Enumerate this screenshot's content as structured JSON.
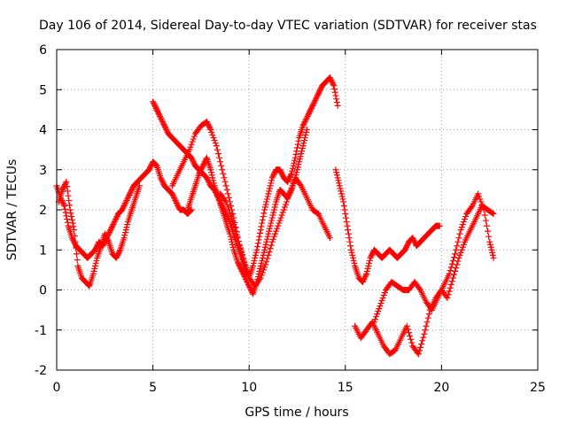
{
  "chart_data": {
    "type": "scatter",
    "title": "Day 106 of 2014, Sidereal Day-to-day VTEC variation (SDTVAR) for receiver stas",
    "xlabel": "GPS time / hours",
    "ylabel": "SDTVAR / TECUs",
    "xlim": [
      0,
      25
    ],
    "ylim": [
      -2,
      6
    ],
    "xticks": [
      0,
      5,
      10,
      15,
      20,
      25
    ],
    "yticks": [
      -2,
      -1,
      0,
      1,
      2,
      3,
      4,
      5,
      6
    ],
    "grid": true,
    "legend": "none",
    "marker": "plus",
    "series": [
      {
        "color": "#ff0000",
        "x": [
          0,
          0.2,
          0.4,
          0.6,
          0.8,
          1.0,
          1.2,
          1.4,
          1.6,
          1.8,
          2.0,
          2.2,
          2.4,
          2.6,
          2.8,
          3.0,
          3.2,
          3.4,
          3.6,
          3.8,
          4.0,
          4.2,
          4.4,
          4.6,
          4.8,
          5.0,
          5.2,
          5.4,
          5.6,
          5.8,
          6.0,
          6.2,
          6.4,
          6.6,
          6.8,
          7.0
        ],
        "y": [
          2.6,
          2.3,
          2.1,
          1.6,
          1.3,
          1.1,
          1.0,
          0.9,
          0.8,
          0.9,
          1.0,
          1.2,
          1.1,
          1.3,
          1.5,
          1.7,
          1.9,
          2.0,
          2.2,
          2.4,
          2.6,
          2.7,
          2.8,
          2.9,
          3.0,
          3.2,
          3.1,
          2.8,
          2.6,
          2.5,
          2.4,
          2.2,
          2.0,
          2.0,
          1.9,
          2.0
        ]
      },
      {
        "color": "#ff0000",
        "x": [
          0.1,
          0.3,
          0.5,
          0.7,
          0.9,
          1.1,
          1.3,
          1.5,
          1.7,
          1.9,
          2.1,
          2.3,
          2.5,
          2.7,
          2.9,
          3.1,
          3.3,
          3.5,
          3.7,
          3.9,
          4.1,
          4.3
        ],
        "y": [
          2.2,
          2.5,
          2.7,
          2.0,
          1.5,
          0.6,
          0.3,
          0.2,
          0.1,
          0.4,
          0.8,
          1.1,
          1.4,
          1.2,
          0.9,
          0.8,
          1.0,
          1.3,
          1.7,
          2.0,
          2.3,
          2.6
        ]
      },
      {
        "color": "#ff0000",
        "x": [
          5.0,
          5.2,
          5.4,
          5.6,
          5.8,
          6.0,
          6.2,
          6.4,
          6.6,
          6.8,
          7.0,
          7.2,
          7.4,
          7.6,
          7.8,
          8.0,
          8.2,
          8.4,
          8.6,
          8.8,
          9.0,
          9.2,
          9.4,
          9.6,
          9.8,
          10.0
        ],
        "y": [
          4.7,
          4.5,
          4.3,
          4.1,
          3.9,
          3.8,
          3.7,
          3.6,
          3.5,
          3.4,
          3.3,
          3.1,
          3.0,
          2.9,
          2.8,
          2.6,
          2.5,
          2.3,
          2.1,
          1.9,
          1.7,
          1.4,
          1.1,
          0.8,
          0.5,
          0.4
        ]
      },
      {
        "color": "#ff0000",
        "x": [
          6.0,
          6.3,
          6.6,
          6.9,
          7.2,
          7.5,
          7.8,
          8.0,
          8.3,
          8.6,
          8.9,
          9.2,
          9.5,
          9.8,
          10.0,
          10.2,
          10.4,
          10.6,
          10.8,
          11.0,
          11.2,
          11.4,
          11.6,
          11.8,
          12.0,
          12.2,
          12.4,
          12.6,
          12.8,
          13.0,
          13.2,
          13.4,
          13.6,
          13.8,
          14.0,
          14.2,
          14.4,
          14.6
        ],
        "y": [
          2.6,
          2.9,
          3.2,
          3.5,
          3.9,
          4.1,
          4.2,
          4.0,
          3.6,
          3.0,
          2.4,
          1.8,
          1.1,
          0.6,
          0.3,
          0.6,
          1.0,
          1.5,
          2.0,
          2.4,
          2.8,
          3.0,
          3.0,
          2.8,
          2.7,
          2.9,
          3.3,
          3.8,
          4.1,
          4.3,
          4.5,
          4.7,
          4.9,
          5.1,
          5.2,
          5.3,
          5.1,
          4.6
        ]
      },
      {
        "color": "#ff0000",
        "x": [
          6.8,
          7.0,
          7.2,
          7.4,
          7.6,
          7.8,
          8.0,
          8.2,
          8.4,
          8.6,
          8.8,
          9.0,
          9.2,
          9.4,
          9.6,
          9.8,
          10.0,
          10.2,
          10.4,
          10.6,
          10.8,
          11.0,
          11.2,
          11.4,
          11.6,
          11.8,
          12.0,
          12.2,
          12.4,
          12.6,
          12.8,
          13.0
        ],
        "y": [
          2.0,
          2.3,
          2.6,
          2.9,
          3.1,
          3.3,
          3.0,
          2.6,
          2.3,
          2.0,
          1.7,
          1.4,
          1.0,
          0.7,
          0.5,
          0.3,
          0.1,
          -0.1,
          0.2,
          0.6,
          1.0,
          1.4,
          1.8,
          2.2,
          2.5,
          2.4,
          2.3,
          2.5,
          2.8,
          3.2,
          3.6,
          4.0
        ]
      },
      {
        "color": "#ff0000",
        "x": [
          8.5,
          8.8,
          9.1,
          9.4,
          9.7,
          10.0,
          10.3,
          10.6,
          10.9,
          11.2,
          11.5,
          11.8,
          12.1,
          12.4,
          12.7,
          13.0,
          13.3,
          13.6,
          13.9,
          14.2
        ],
        "y": [
          2.4,
          2.2,
          1.8,
          1.3,
          0.8,
          0.3,
          0.1,
          0.3,
          0.7,
          1.2,
          1.6,
          2.0,
          2.4,
          2.8,
          2.6,
          2.3,
          2.0,
          1.9,
          1.6,
          1.3
        ]
      },
      {
        "color": "#ff0000",
        "x": [
          14.5,
          14.7,
          14.9,
          15.1,
          15.3,
          15.5,
          15.7,
          15.9,
          16.1,
          16.3,
          16.5,
          16.7,
          16.9,
          17.1,
          17.3,
          17.5,
          17.7,
          17.9,
          18.1,
          18.3,
          18.5,
          18.7,
          18.9,
          19.1,
          19.3,
          19.5,
          19.7,
          19.9
        ],
        "y": [
          3.0,
          2.6,
          2.2,
          1.6,
          1.0,
          0.6,
          0.3,
          0.2,
          0.4,
          0.8,
          1.0,
          0.9,
          0.8,
          0.9,
          1.0,
          0.9,
          0.8,
          0.9,
          1.0,
          1.2,
          1.3,
          1.1,
          1.2,
          1.3,
          1.4,
          1.5,
          1.6,
          1.6
        ]
      },
      {
        "color": "#ff0000",
        "x": [
          15.5,
          15.8,
          16.1,
          16.4,
          16.7,
          17.0,
          17.3,
          17.6,
          17.9,
          18.2,
          18.5,
          18.8,
          19.1,
          19.4,
          19.7,
          20.0,
          20.3,
          20.6,
          20.9,
          21.2,
          21.5,
          21.8,
          22.1,
          22.4,
          22.7
        ],
        "y": [
          -0.9,
          -1.2,
          -1.0,
          -0.8,
          -1.1,
          -1.4,
          -1.6,
          -1.5,
          -1.2,
          -0.9,
          -1.4,
          -1.6,
          -1.1,
          -0.5,
          -0.2,
          0.0,
          -0.2,
          0.3,
          0.8,
          1.2,
          1.5,
          1.8,
          2.1,
          2.0,
          1.9
        ]
      },
      {
        "color": "#ff0000",
        "x": [
          16.5,
          16.8,
          17.1,
          17.4,
          17.7,
          18.0,
          18.3,
          18.6,
          18.9,
          19.2,
          19.5,
          19.8,
          20.1,
          20.4,
          20.7,
          21.0,
          21.3,
          21.6,
          21.9,
          22.2,
          22.5,
          22.7
        ],
        "y": [
          -0.8,
          -0.4,
          0.0,
          0.2,
          0.1,
          0.0,
          0.0,
          0.2,
          0.0,
          -0.3,
          -0.5,
          -0.2,
          0.1,
          0.4,
          0.9,
          1.5,
          1.9,
          2.1,
          2.4,
          2.0,
          1.2,
          0.8
        ]
      }
    ]
  }
}
